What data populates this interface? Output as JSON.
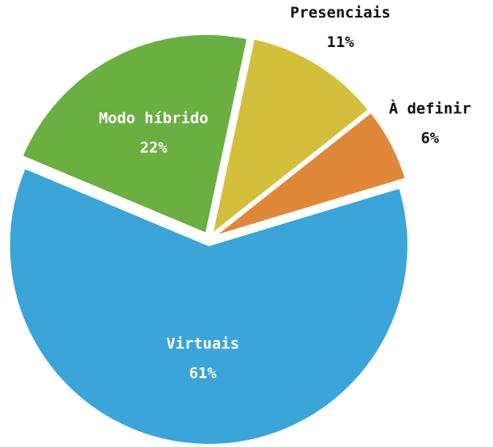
{
  "chart_data": {
    "type": "pie",
    "categories": [
      "Presenciais",
      "À definir",
      "Virtuais",
      "Modo híbrido"
    ],
    "values": [
      11,
      6,
      61,
      22
    ],
    "value_labels": [
      "11%",
      "6%",
      "61%",
      "22%"
    ],
    "colors": [
      "#d3bf3b",
      "#e0883a",
      "#3ba4d8",
      "#6bae41"
    ]
  }
}
